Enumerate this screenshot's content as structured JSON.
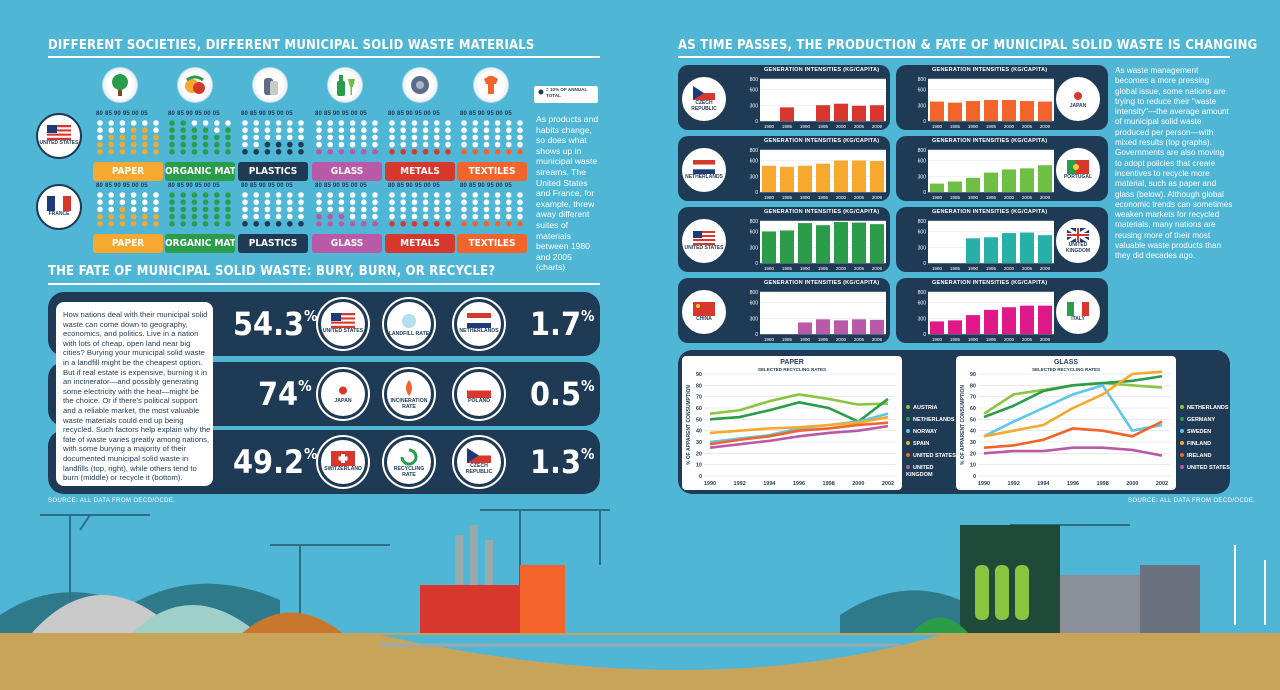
{
  "left_title": "DIFFERENT SOCIETIES, DIFFERENT MUNICIPAL SOLID WASTE MATERIALS",
  "right_title": "AS TIME PASSES, THE PRODUCTION & FATE OF MUNICIPAL SOLID WASTE IS CHANGING",
  "fate_title": "THE FATE OF MUNICIPAL SOLID WASTE: BURY, BURN, OR RECYCLE?",
  "years_header": "80 85 90 95 00 05",
  "legend_dot": "= 10% OF ANNUAL TOTAL",
  "materials": [
    {
      "name": "PAPER",
      "color": "#f7a92f"
    },
    {
      "name": "ORGANIC MATERIAL",
      "color": "#2a9c4a"
    },
    {
      "name": "PLASTICS",
      "color": "#1f3a55"
    },
    {
      "name": "GLASS",
      "color": "#b85aa8"
    },
    {
      "name": "METALS",
      "color": "#d7372c"
    },
    {
      "name": "TEXTILES",
      "color": "#f2642b"
    }
  ],
  "countries_top": [
    "UNITED STATES",
    "FRANCE"
  ],
  "materials_text": "As products and habits change, so does what shows up in municipal waste streams. The United States and France, for example, threw away different suites of materials between 1980 and 2005 (charts).",
  "fate_text": "How nations deal with their municipal solid waste can come down to geography, economics, and politics. Live in a nation with lots of cheap, open land near big cities? Burying your municipal solid waste in a landfill might be the cheapest option. But if real estate is expensive, burning it in an incinerator—and possibly generating some electricity with the heat—might be the choice. Or if there's political support and a reliable market, the most valuable waste materials could end up being recycled. Such factors help explain why the fate of waste varies greatly among nations, with some burying a majority of their documented municipal solid waste in landfills (top, right), while others tend to burn (middle) or recycle it (bottom).",
  "source_left": "SOURCE: ALL DATA FROM OECD/OCDE.",
  "source_right": "SOURCE: ALL DATA FROM OECD/OCDE.",
  "fate_rows": [
    {
      "value": "54.3",
      "left_country": "UNITED STATES",
      "category": "LANDFILL RATE",
      "right_country": "NETHERLANDS",
      "right_value": "1.7"
    },
    {
      "value": "74",
      "left_country": "JAPAN",
      "category": "INCINERATION RATE",
      "right_country": "POLAND",
      "right_value": "0.5"
    },
    {
      "value": "49.2",
      "left_country": "SWITZERLAND",
      "category": "RECYCLING RATE",
      "right_country": "CZECH REPUBLIC",
      "right_value": "1.3"
    }
  ],
  "pct_symbol": "%",
  "gen_title": "GENERATION INTENSITIES (KG/CAPITA)",
  "gen_charts": [
    {
      "country": "CZECH REPUBLIC",
      "color": "#d7372c",
      "years": [
        "1980",
        "1985",
        "1990",
        "1995",
        "2000",
        "2005",
        "2009"
      ],
      "values": [
        null,
        260,
        null,
        300,
        330,
        290,
        300
      ]
    },
    {
      "country": "JAPAN",
      "color": "#f2642b",
      "years": [
        "1980",
        "1985",
        "1990",
        "1995",
        "2000",
        "2005",
        "2009"
      ],
      "values": [
        370,
        350,
        380,
        400,
        400,
        380,
        370
      ]
    },
    {
      "country": "NETHERLANDS",
      "color": "#f7a92f",
      "years": [
        "1980",
        "1985",
        "1990",
        "1995",
        "2000",
        "2005",
        "2009"
      ],
      "values": [
        500,
        480,
        500,
        540,
        600,
        600,
        590
      ]
    },
    {
      "country": "PORTUGAL",
      "color": "#6fbf44",
      "years": [
        "1980",
        "1985",
        "1990",
        "1995",
        "2000",
        "2005",
        "2009"
      ],
      "values": [
        160,
        200,
        270,
        370,
        430,
        450,
        510
      ]
    },
    {
      "country": "UNITED STATES",
      "color": "#2a9c4a",
      "years": [
        "1980",
        "1985",
        "1990",
        "1995",
        "2000",
        "2005",
        "2009"
      ],
      "values": [
        600,
        620,
        760,
        720,
        780,
        770,
        740
      ]
    },
    {
      "country": "UNITED KINGDOM",
      "color": "#27b0a8",
      "years": [
        "1980",
        "1985",
        "1990",
        "1995",
        "2000",
        "2005",
        "2009"
      ],
      "values": [
        null,
        null,
        470,
        490,
        570,
        580,
        530
      ]
    },
    {
      "country": "CHINA",
      "color": "#b85aa8",
      "years": [
        "1980",
        "1985",
        "1990",
        "1995",
        "2000",
        "2005",
        "2009"
      ],
      "values": [
        null,
        null,
        220,
        280,
        260,
        280,
        270
      ]
    },
    {
      "country": "ITALY",
      "color": "#e0198a",
      "years": [
        "1980",
        "1985",
        "1990",
        "1995",
        "2000",
        "2005",
        "2009"
      ],
      "values": [
        240,
        260,
        360,
        460,
        510,
        540,
        540
      ]
    }
  ],
  "gen_ticks": [
    "800",
    "600",
    "300",
    "0"
  ],
  "time_text": "As waste management becomes a more pressing global issue, some nations are trying to reduce their \"waste intensity\"—the average amount of municipal solid waste produced per person—with mixed results (top graphs). Governments are also moving to adopt policies that create incentives to recycle more material, such as paper and glass (below). Although global economic trends can sometimes weaken markets for recycled materials, many nations are reusing more of their most valuable waste products than they did decades ago.",
  "chart_data": [
    {
      "type": "line",
      "title": "PAPER",
      "subtitle": "SELECTED RECYCLING RATES",
      "ylabel": "% OF APPARENT CONSUMPTION",
      "x": [
        1990,
        1992,
        1994,
        1996,
        1998,
        2000,
        2002
      ],
      "ylim": [
        0,
        90
      ],
      "series": [
        {
          "name": "AUSTRIA",
          "color": "#8bc53f",
          "values": [
            55,
            58,
            66,
            72,
            68,
            63,
            64
          ]
        },
        {
          "name": "NETHERLANDS",
          "color": "#2a9c4a",
          "values": [
            50,
            52,
            58,
            65,
            60,
            48,
            68
          ]
        },
        {
          "name": "NORWAY",
          "color": "#5ec6e8",
          "values": [
            30,
            33,
            36,
            42,
            45,
            48,
            55
          ]
        },
        {
          "name": "SPAIN",
          "color": "#f7a92f",
          "values": [
            38,
            40,
            42,
            43,
            45,
            47,
            52
          ]
        },
        {
          "name": "UNITED STATES",
          "color": "#f2642b",
          "values": [
            28,
            32,
            35,
            40,
            42,
            45,
            47
          ]
        },
        {
          "name": "UNITED KINGDOM",
          "color": "#b85aa8",
          "values": [
            25,
            28,
            31,
            35,
            38,
            40,
            44
          ]
        }
      ]
    },
    {
      "type": "line",
      "title": "GLASS",
      "subtitle": "SELECTED RECYCLING RATES",
      "ylabel": "% OF APPARENT CONSUMPTION",
      "x": [
        1990,
        1992,
        1994,
        1996,
        1998,
        2000,
        2002
      ],
      "ylim": [
        0,
        90
      ],
      "series": [
        {
          "name": "NETHERLANDS",
          "color": "#8bc53f",
          "values": [
            55,
            72,
            76,
            80,
            82,
            80,
            78
          ]
        },
        {
          "name": "GERMANY",
          "color": "#2a9c4a",
          "values": [
            52,
            62,
            75,
            80,
            82,
            84,
            88
          ]
        },
        {
          "name": "SWEDEN",
          "color": "#5ec6e8",
          "values": [
            35,
            48,
            60,
            72,
            80,
            40,
            45
          ]
        },
        {
          "name": "FINLAND",
          "color": "#f7a92f",
          "values": [
            35,
            40,
            45,
            60,
            72,
            90,
            92
          ]
        },
        {
          "name": "IRELAND",
          "color": "#f2642b",
          "values": [
            25,
            27,
            32,
            42,
            40,
            35,
            48
          ]
        },
        {
          "name": "UNITED STATES",
          "color": "#b85aa8",
          "values": [
            20,
            22,
            22,
            25,
            25,
            23,
            18
          ]
        }
      ]
    }
  ]
}
